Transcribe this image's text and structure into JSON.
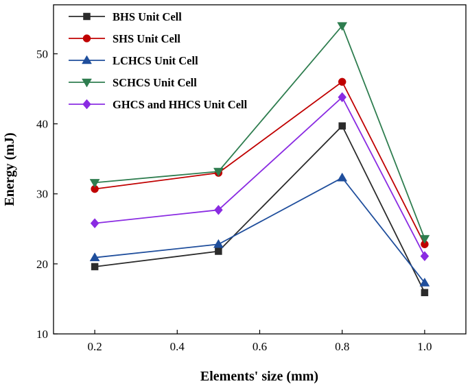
{
  "chart_data": {
    "type": "line",
    "title": "",
    "xlabel": "Elements' size (mm)",
    "ylabel": "Energy (mJ)",
    "x": [
      0.2,
      0.5,
      0.8,
      1.0
    ],
    "xlim": [
      0.1,
      1.1
    ],
    "ylim": [
      10,
      57
    ],
    "xticks": [
      0.2,
      0.4,
      0.6,
      0.8,
      1.0
    ],
    "xtick_labels": [
      "0.2",
      "0.4",
      "0.6",
      "0.8",
      "1.0"
    ],
    "yticks": [
      10,
      20,
      30,
      40,
      50
    ],
    "ytick_labels": [
      "10",
      "20",
      "30",
      "40",
      "50"
    ],
    "grid": false,
    "legend_position": "top-left",
    "series": [
      {
        "name": "BHS Unit Cell",
        "color": "#2b2b2b",
        "marker": "square",
        "values": [
          19.6,
          21.8,
          39.7,
          15.9
        ]
      },
      {
        "name": "SHS Unit Cell",
        "color": "#c00000",
        "marker": "circle",
        "values": [
          30.7,
          33.0,
          46.0,
          22.8
        ]
      },
      {
        "name": "LCHCS Unit Cell",
        "color": "#1f4e9c",
        "marker": "triangle-up",
        "values": [
          20.9,
          22.8,
          32.3,
          17.3
        ]
      },
      {
        "name": "SCHCS Unit Cell",
        "color": "#2e7d4f",
        "marker": "triangle-down",
        "values": [
          31.6,
          33.2,
          54.0,
          23.6
        ]
      },
      {
        "name": "GHCS and HHCS Unit Cell",
        "color": "#8a2be2",
        "marker": "diamond",
        "values": [
          25.8,
          27.7,
          43.8,
          21.1
        ]
      }
    ]
  }
}
